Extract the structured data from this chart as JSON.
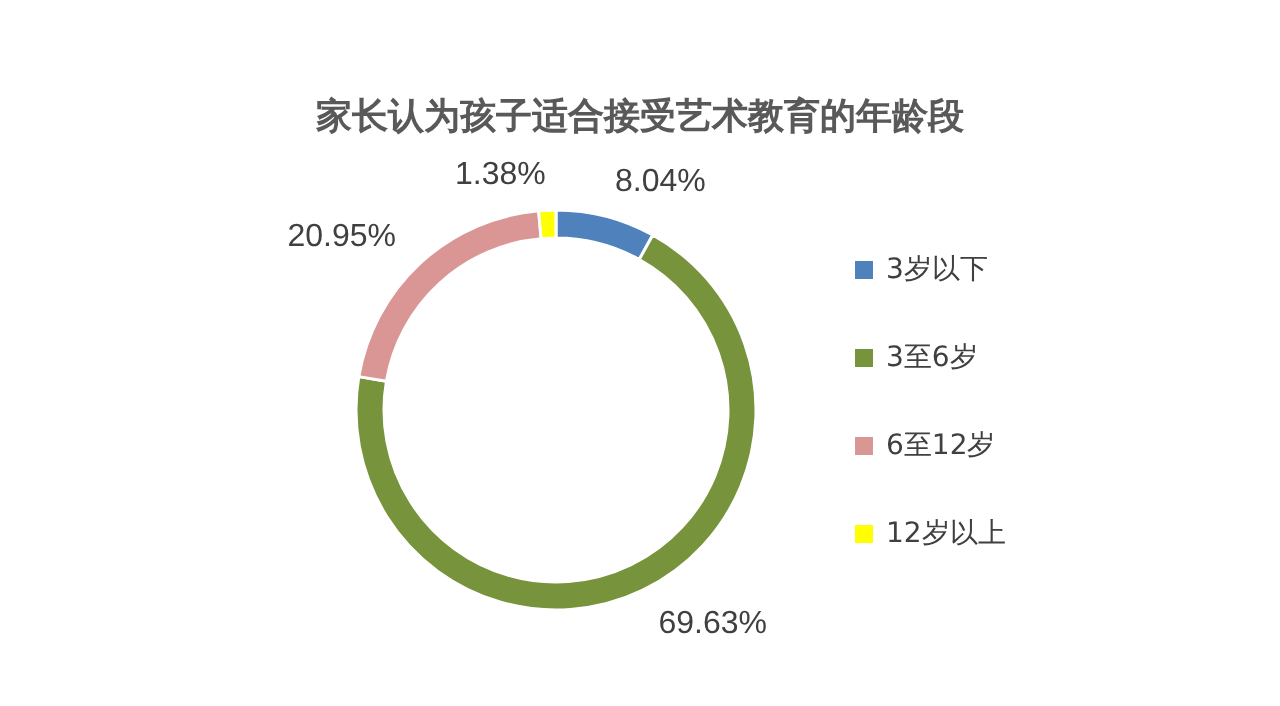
{
  "chart_data": {
    "type": "donut",
    "title": "家长认为孩子适合接受艺术教育的年龄段",
    "categories": [
      "3岁以下",
      "3至6岁",
      "6至12岁",
      "12岁以上"
    ],
    "values": [
      8.04,
      69.63,
      20.95,
      1.38
    ],
    "value_labels": [
      "8.04%",
      "69.63%",
      "20.95%",
      "1.38%"
    ],
    "colors": [
      "#4f81bd",
      "#77933c",
      "#d99694",
      "#ffff00"
    ],
    "legend": "right"
  }
}
